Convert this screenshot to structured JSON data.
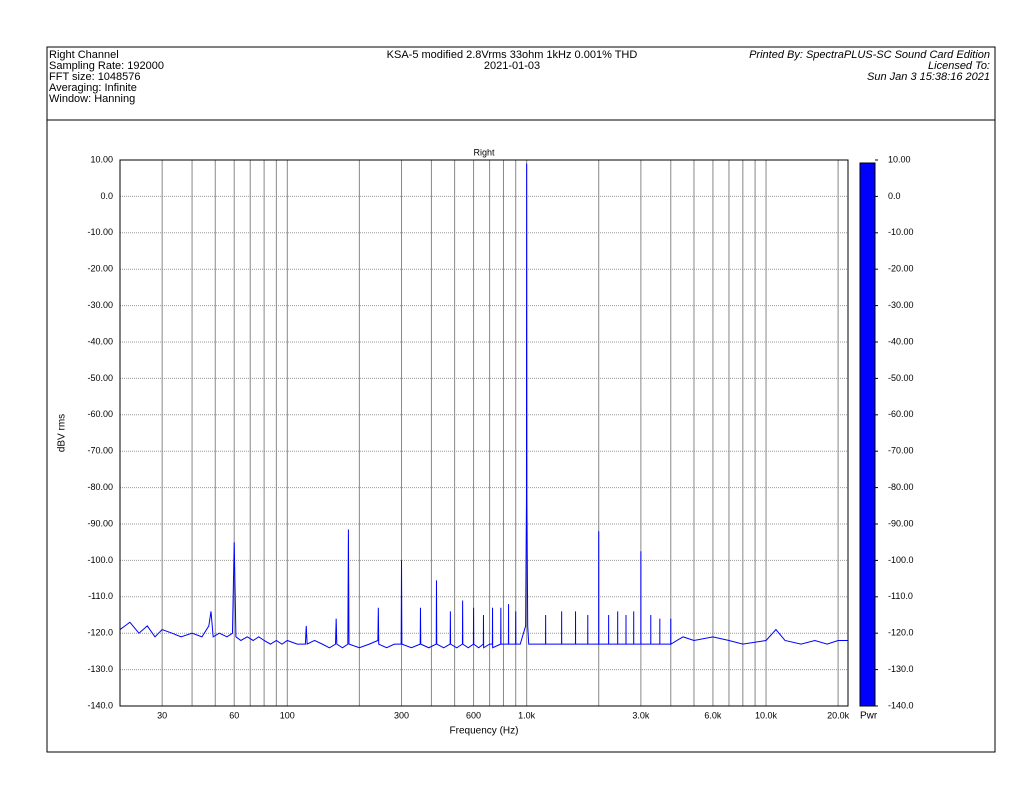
{
  "header": {
    "left": [
      "Right Channel",
      "Sampling Rate: 192000",
      "FFT size: 1048576",
      "Averaging: Infinite",
      "Window: Hanning"
    ],
    "center": [
      "KSA-5 modified 2.8Vrms 33ohm 1kHz 0.001% THD",
      "2021-01-03"
    ],
    "right": [
      "Printed By: SpectraPLUS-SC Sound Card Edition",
      "Licensed To:",
      "Sun Jan  3 15:38:16 2021"
    ]
  },
  "chart_data": {
    "type": "line",
    "title": "Right",
    "x_label": "Frequency (Hz)",
    "y_label": "dBV rms",
    "xscale": "log",
    "grid": true,
    "xlim": [
      20,
      22000
    ],
    "xticks": [
      30,
      60,
      100,
      300,
      600,
      {
        "value": 1000,
        "label": "1.0k"
      },
      {
        "value": 3000,
        "label": "3.0k"
      },
      {
        "value": 6000,
        "label": "6.0k"
      },
      {
        "value": 10000,
        "label": "10.0k"
      },
      {
        "value": 20000,
        "label": "20.0k"
      }
    ],
    "x_minor_ticks": [
      40,
      50,
      70,
      80,
      90,
      200,
      400,
      500,
      700,
      800,
      900,
      2000,
      4000,
      5000,
      7000,
      8000,
      9000
    ],
    "ylim": [
      -140,
      10
    ],
    "yticks": [
      {
        "value": 10,
        "label": "10.00"
      },
      {
        "value": 0,
        "label": "0.0"
      },
      {
        "value": -10,
        "label": "-10.00"
      },
      {
        "value": -20,
        "label": "-20.00"
      },
      {
        "value": -30,
        "label": "-30.00"
      },
      {
        "value": -40,
        "label": "-40.00"
      },
      {
        "value": -50,
        "label": "-50.00"
      },
      {
        "value": -60,
        "label": "-60.00"
      },
      {
        "value": -70,
        "label": "-70.00"
      },
      {
        "value": -80,
        "label": "-80.00"
      },
      {
        "value": -90,
        "label": "-90.00"
      },
      {
        "value": -100,
        "label": "-100.0"
      },
      {
        "value": -110,
        "label": "-110.0"
      },
      {
        "value": -120,
        "label": "-120.0"
      },
      {
        "value": -130,
        "label": "-130.0"
      },
      {
        "value": -140,
        "label": "-140.0"
      }
    ],
    "y2lim": [
      -140,
      10
    ],
    "y2ticks": [
      {
        "value": 10,
        "label": "10.00"
      },
      {
        "value": 0,
        "label": "0.0"
      },
      {
        "value": -10,
        "label": "-10.00"
      },
      {
        "value": -20,
        "label": "-20.00"
      },
      {
        "value": -30,
        "label": "-30.00"
      },
      {
        "value": -40,
        "label": "-40.00"
      },
      {
        "value": -50,
        "label": "-50.00"
      },
      {
        "value": -60,
        "label": "-60.00"
      },
      {
        "value": -70,
        "label": "-70.00"
      },
      {
        "value": -80,
        "label": "-80.00"
      },
      {
        "value": -90,
        "label": "-90.00"
      },
      {
        "value": -100,
        "label": "-100.0"
      },
      {
        "value": -110,
        "label": "-110.0"
      },
      {
        "value": -120,
        "label": "-120.0"
      },
      {
        "value": -130,
        "label": "-130.0"
      },
      {
        "value": -140,
        "label": "-140.0"
      }
    ],
    "colorbar_label": "Pwr",
    "colorbar_color": "#0000ff",
    "x": [
      20,
      22,
      24,
      26,
      28,
      30,
      33,
      36,
      40,
      44,
      47,
      48,
      49,
      52,
      56,
      59,
      60,
      61,
      64,
      68,
      72,
      76,
      80,
      85,
      90,
      95,
      100,
      110,
      119,
      120,
      121,
      130,
      140,
      150,
      159,
      160,
      161,
      170,
      179,
      180,
      181,
      200,
      220,
      239,
      240,
      241,
      260,
      280,
      299,
      300,
      301,
      330,
      359,
      360,
      361,
      390,
      419,
      420,
      421,
      450,
      479,
      480,
      481,
      510,
      539,
      540,
      541,
      570,
      599,
      600,
      601,
      630,
      659,
      660,
      661,
      700,
      719,
      720,
      721,
      779,
      780,
      781,
      839,
      840,
      841,
      899,
      900,
      901,
      940,
      990,
      998,
      1000,
      1002,
      1010,
      1020,
      1100,
      1199,
      1200,
      1201,
      1399,
      1400,
      1401,
      1599,
      1600,
      1601,
      1799,
      1800,
      1801,
      1999,
      2000,
      2001,
      2199,
      2200,
      2201,
      2399,
      2400,
      2401,
      2599,
      2600,
      2601,
      2799,
      2800,
      2801,
      2999,
      3000,
      3001,
      3299,
      3300,
      3301,
      3599,
      3600,
      3601,
      3999,
      4000,
      4001,
      4500,
      5000,
      6000,
      7000,
      8000,
      10000,
      11000,
      12000,
      14000,
      16000,
      18000,
      20000,
      22000
    ],
    "series": [
      {
        "color": "#0000ff",
        "values": [
          -119,
          -117,
          -120,
          -118,
          -121,
          -119,
          -120,
          -121,
          -120,
          -121,
          -118,
          -114,
          -121,
          -120,
          -121,
          -120,
          -95,
          -121,
          -122,
          -121,
          -122,
          -121,
          -122,
          -123,
          -122,
          -123,
          -122,
          -123,
          -123,
          -118,
          -123,
          -122,
          -123,
          -124,
          -123,
          -116,
          -123,
          -124,
          -123,
          -91.5,
          -123,
          -124,
          -123,
          -122,
          -113,
          -123,
          -124,
          -123,
          -123,
          -100,
          -123,
          -124,
          -123,
          -113,
          -123,
          -124,
          -123,
          -105.5,
          -123,
          -124,
          -123,
          -114,
          -123,
          -124,
          -123,
          -111,
          -123,
          -124,
          -123,
          -113,
          -123,
          -124,
          -123,
          -115,
          -124,
          -123,
          -123,
          -113,
          -124,
          -123,
          -113,
          -123,
          -123,
          -112,
          -123,
          -123,
          -114,
          -123,
          -123,
          -118,
          -83,
          9,
          -83,
          -118,
          -123,
          -123,
          -123,
          -115,
          -123,
          -123,
          -114,
          -123,
          -123,
          -114,
          -123,
          -123,
          -115,
          -123,
          -123,
          -92,
          -123,
          -123,
          -115,
          -123,
          -123,
          -114,
          -123,
          -123,
          -115,
          -123,
          -123,
          -114,
          -123,
          -123,
          -97.5,
          -123,
          -123,
          -115,
          -123,
          -123,
          -116,
          -123,
          -123,
          -116,
          -123,
          -121,
          -122,
          -121,
          -122,
          -123,
          -122,
          -119,
          -122,
          -123,
          -122,
          -123,
          -122,
          -122
        ]
      }
    ]
  }
}
